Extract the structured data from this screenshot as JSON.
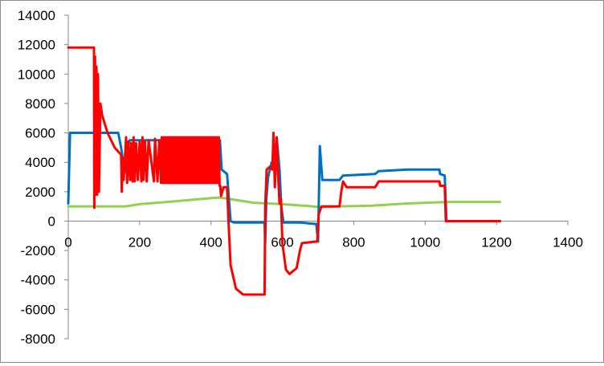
{
  "chart_data": {
    "type": "line",
    "title": "",
    "xlabel": "",
    "ylabel": "",
    "xlim": [
      0,
      1400
    ],
    "ylim": [
      -8000,
      14000
    ],
    "x_ticks": [
      0,
      200,
      400,
      600,
      800,
      1000,
      1200,
      1400
    ],
    "y_ticks": [
      14000,
      12000,
      10000,
      8000,
      6000,
      4000,
      2000,
      0,
      -2000,
      -4000,
      -6000,
      -8000
    ],
    "x_tick_labels": [
      "0",
      "200",
      "400",
      "600",
      "800",
      "1000",
      "1200",
      "1400"
    ],
    "y_tick_labels": [
      "14000",
      "12000",
      "10000",
      "8000",
      "6000",
      "4000",
      "2000",
      "0",
      "-2000",
      "-4000",
      "-6000",
      "-8000"
    ],
    "grid": false,
    "legend": "none",
    "series": [
      {
        "color": "#0070c0",
        "points": [
          [
            0,
            1200
          ],
          [
            5,
            6000
          ],
          [
            140,
            6000
          ],
          [
            148,
            5000
          ],
          [
            158,
            3300
          ],
          [
            165,
            5000
          ],
          [
            172,
            5500
          ],
          [
            260,
            5500
          ],
          [
            425,
            5500
          ],
          [
            430,
            3500
          ],
          [
            445,
            3200
          ],
          [
            455,
            0
          ],
          [
            465,
            -100
          ],
          [
            550,
            -100
          ],
          [
            552,
            -1500
          ],
          [
            555,
            1500
          ],
          [
            560,
            3000
          ],
          [
            570,
            4000
          ],
          [
            578,
            4000
          ],
          [
            584,
            5700
          ],
          [
            592,
            3500
          ],
          [
            597,
            1000
          ],
          [
            603,
            -100
          ],
          [
            650,
            -100
          ],
          [
            695,
            -200
          ],
          [
            700,
            -1400
          ],
          [
            705,
            5100
          ],
          [
            712,
            2800
          ],
          [
            760,
            2800
          ],
          [
            770,
            3100
          ],
          [
            860,
            3200
          ],
          [
            870,
            3400
          ],
          [
            950,
            3500
          ],
          [
            1040,
            3500
          ],
          [
            1042,
            3200
          ],
          [
            1055,
            3100
          ],
          [
            1060,
            0
          ],
          [
            1210,
            0
          ]
        ]
      },
      {
        "color": "#ff0000",
        "points": [
          [
            0,
            11800
          ],
          [
            72,
            11800
          ],
          [
            73,
            900
          ],
          [
            75,
            11200
          ],
          [
            77,
            1800
          ],
          [
            79,
            10500
          ],
          [
            81,
            1800
          ],
          [
            83,
            10000
          ],
          [
            86,
            2000
          ],
          [
            90,
            8000
          ],
          [
            95,
            7200
          ],
          [
            110,
            6000
          ],
          [
            130,
            5000
          ],
          [
            148,
            4500
          ],
          [
            150,
            2000
          ],
          [
            152,
            4300
          ],
          [
            155,
            2800
          ],
          [
            158,
            4000
          ],
          [
            162,
            5700
          ],
          [
            165,
            2600
          ],
          [
            168,
            5400
          ],
          [
            173,
            2800
          ],
          [
            176,
            5300
          ],
          [
            180,
            2700
          ],
          [
            183,
            5700
          ],
          [
            186,
            2700
          ],
          [
            190,
            5300
          ],
          [
            195,
            2800
          ],
          [
            200,
            5400
          ],
          [
            205,
            2700
          ],
          [
            208,
            5700
          ],
          [
            211,
            2800
          ],
          [
            215,
            5400
          ],
          [
            220,
            2700
          ],
          [
            225,
            5500
          ],
          [
            240,
            2700
          ],
          [
            243,
            5600
          ],
          [
            250,
            2700
          ],
          [
            255,
            5500
          ],
          [
            260,
            2600
          ],
          [
            262,
            5700
          ],
          [
            264,
            2600
          ],
          [
            266,
            5700
          ],
          [
            268,
            2600
          ],
          [
            270,
            5700
          ],
          [
            272,
            2600
          ],
          [
            274,
            5700
          ],
          [
            276,
            2600
          ],
          [
            278,
            5700
          ],
          [
            280,
            2600
          ],
          [
            282,
            5700
          ],
          [
            284,
            2600
          ],
          [
            286,
            5700
          ],
          [
            288,
            2600
          ],
          [
            290,
            5700
          ],
          [
            292,
            2600
          ],
          [
            294,
            5700
          ],
          [
            296,
            2600
          ],
          [
            298,
            5700
          ],
          [
            300,
            2600
          ],
          [
            302,
            5700
          ],
          [
            304,
            2600
          ],
          [
            306,
            5700
          ],
          [
            308,
            2600
          ],
          [
            310,
            5700
          ],
          [
            312,
            2600
          ],
          [
            314,
            5700
          ],
          [
            316,
            2600
          ],
          [
            318,
            5700
          ],
          [
            320,
            2600
          ],
          [
            322,
            5700
          ],
          [
            324,
            2600
          ],
          [
            326,
            5700
          ],
          [
            328,
            2600
          ],
          [
            330,
            5700
          ],
          [
            332,
            2600
          ],
          [
            334,
            5700
          ],
          [
            336,
            2600
          ],
          [
            338,
            5700
          ],
          [
            340,
            2600
          ],
          [
            342,
            5700
          ],
          [
            344,
            2600
          ],
          [
            346,
            5700
          ],
          [
            348,
            2600
          ],
          [
            350,
            5700
          ],
          [
            352,
            2600
          ],
          [
            354,
            5700
          ],
          [
            356,
            2600
          ],
          [
            358,
            5700
          ],
          [
            360,
            2600
          ],
          [
            362,
            5700
          ],
          [
            364,
            2600
          ],
          [
            366,
            5700
          ],
          [
            368,
            2600
          ],
          [
            370,
            5700
          ],
          [
            372,
            2600
          ],
          [
            374,
            5700
          ],
          [
            376,
            2600
          ],
          [
            378,
            5700
          ],
          [
            380,
            2600
          ],
          [
            382,
            5700
          ],
          [
            384,
            2600
          ],
          [
            386,
            5700
          ],
          [
            388,
            2600
          ],
          [
            390,
            5700
          ],
          [
            392,
            2600
          ],
          [
            394,
            5700
          ],
          [
            396,
            2600
          ],
          [
            398,
            5700
          ],
          [
            400,
            2600
          ],
          [
            402,
            5700
          ],
          [
            404,
            2600
          ],
          [
            406,
            5700
          ],
          [
            408,
            2600
          ],
          [
            410,
            5700
          ],
          [
            412,
            2600
          ],
          [
            414,
            5700
          ],
          [
            416,
            2600
          ],
          [
            418,
            5700
          ],
          [
            420,
            2600
          ],
          [
            422,
            5700
          ],
          [
            424,
            2400
          ],
          [
            426,
            2400
          ],
          [
            428,
            1700
          ],
          [
            435,
            2300
          ],
          [
            445,
            2300
          ],
          [
            450,
            -500
          ],
          [
            455,
            -3000
          ],
          [
            470,
            -4600
          ],
          [
            490,
            -5000
          ],
          [
            550,
            -5000
          ],
          [
            552,
            1000
          ],
          [
            556,
            3500
          ],
          [
            565,
            3700
          ],
          [
            572,
            3500
          ],
          [
            575,
            6000
          ],
          [
            579,
            2300
          ],
          [
            584,
            5700
          ],
          [
            588,
            3200
          ],
          [
            592,
            1200
          ],
          [
            596,
            1500
          ],
          [
            600,
            -1500
          ],
          [
            610,
            -3300
          ],
          [
            620,
            -3600
          ],
          [
            630,
            -3400
          ],
          [
            640,
            -3200
          ],
          [
            650,
            -1900
          ],
          [
            655,
            -1500
          ],
          [
            690,
            -1400
          ],
          [
            695,
            -1400
          ],
          [
            698,
            -1300
          ],
          [
            702,
            500
          ],
          [
            710,
            1000
          ],
          [
            760,
            1000
          ],
          [
            765,
            2000
          ],
          [
            770,
            2700
          ],
          [
            780,
            2300
          ],
          [
            860,
            2300
          ],
          [
            870,
            2700
          ],
          [
            1040,
            2700
          ],
          [
            1042,
            2400
          ],
          [
            1055,
            2400
          ],
          [
            1058,
            0
          ],
          [
            1210,
            0
          ]
        ]
      },
      {
        "color": "#92d050",
        "points": [
          [
            0,
            1000
          ],
          [
            160,
            1000
          ],
          [
            200,
            1150
          ],
          [
            300,
            1350
          ],
          [
            420,
            1600
          ],
          [
            440,
            1550
          ],
          [
            520,
            1250
          ],
          [
            600,
            1150
          ],
          [
            660,
            1050
          ],
          [
            710,
            950
          ],
          [
            760,
            1000
          ],
          [
            850,
            1050
          ],
          [
            950,
            1200
          ],
          [
            1060,
            1300
          ],
          [
            1210,
            1300
          ]
        ]
      }
    ]
  }
}
